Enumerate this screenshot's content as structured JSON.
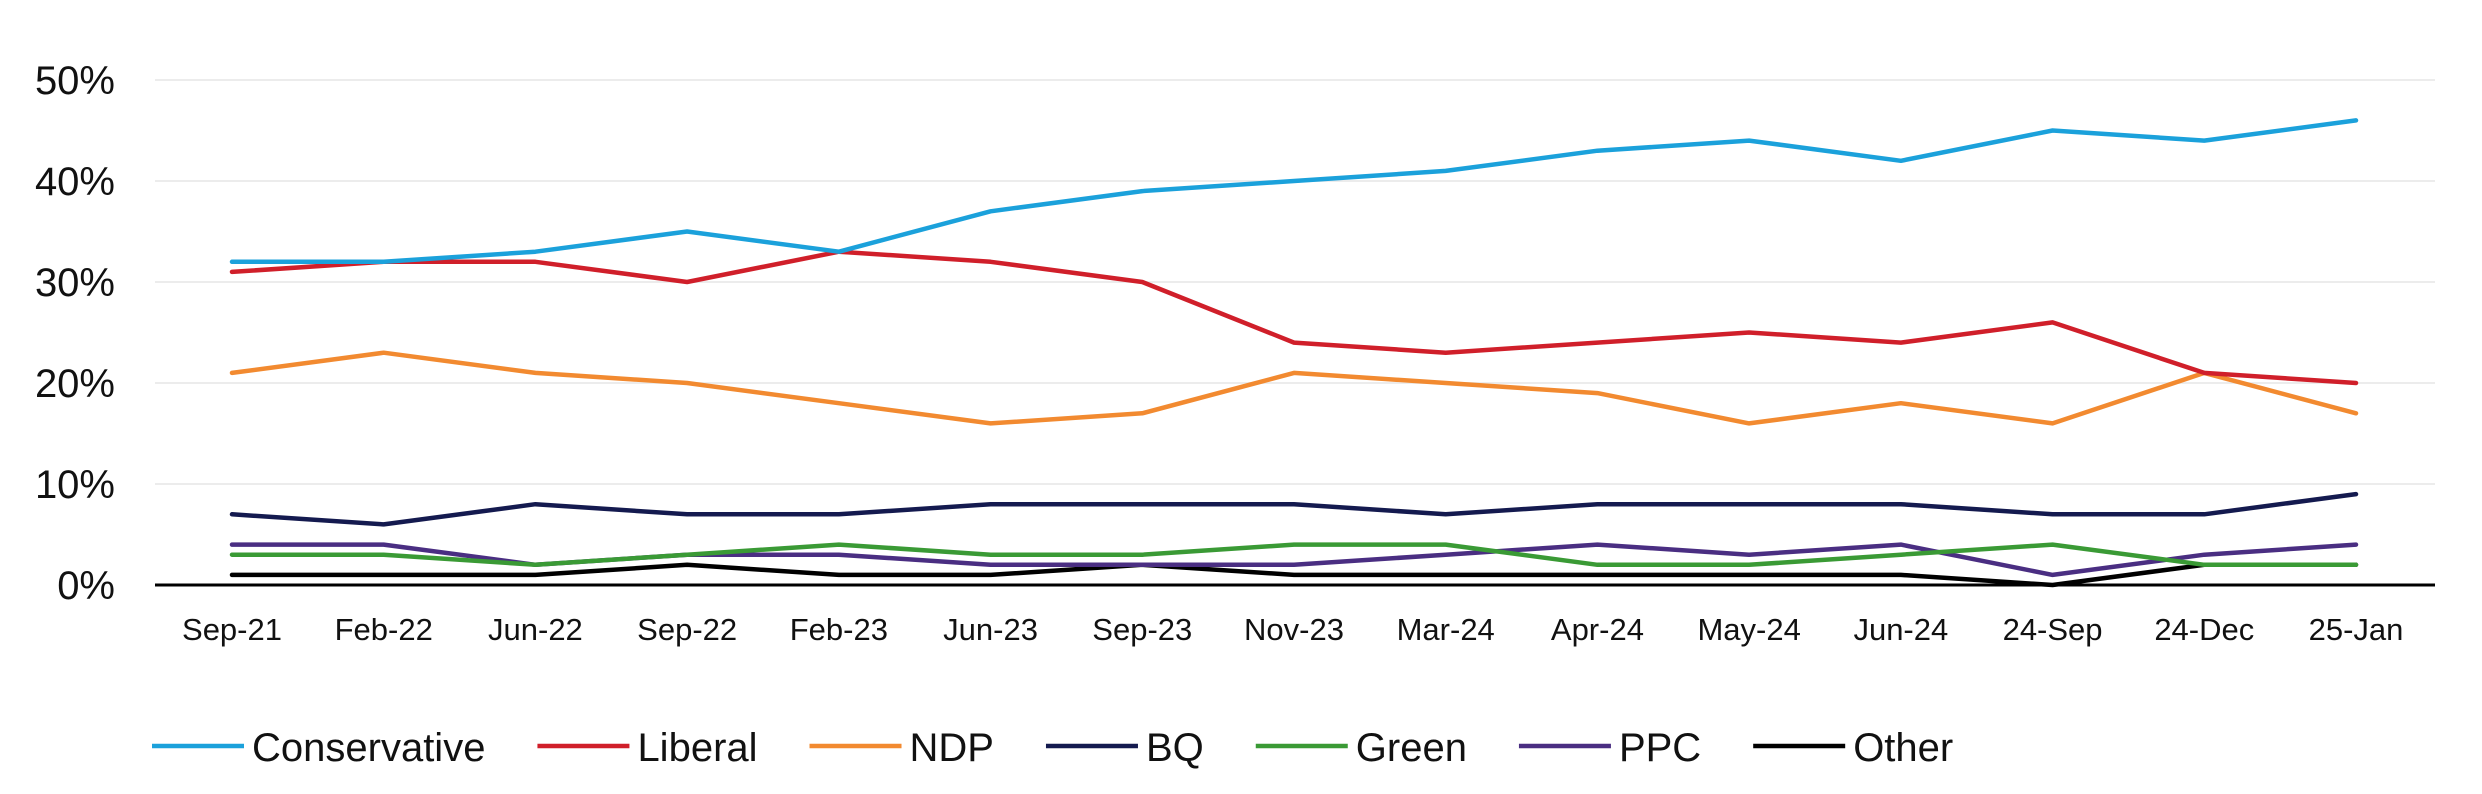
{
  "chart_data": {
    "type": "line",
    "title": "",
    "xlabel": "",
    "ylabel": "",
    "categories": [
      "Sep-21",
      "Feb-22",
      "Jun-22",
      "Sep-22",
      "Feb-23",
      "Jun-23",
      "Sep-23",
      "Nov-23",
      "Mar-24",
      "Apr-24",
      "May-24",
      "Jun-24",
      "24-Sep",
      "24-Dec",
      "25-Jan"
    ],
    "y_ticks": [
      "0%",
      "10%",
      "20%",
      "30%",
      "40%",
      "50%"
    ],
    "ylim": [
      0,
      50
    ],
    "grid": true,
    "legend_position": "bottom",
    "series": [
      {
        "name": "Conservative",
        "color": "#1BA1DB",
        "values": [
          32,
          32,
          33,
          35,
          33,
          37,
          39,
          40,
          41,
          43,
          44,
          42,
          45,
          44,
          46
        ]
      },
      {
        "name": "Liberal",
        "color": "#D01F2A",
        "values": [
          31,
          32,
          32,
          30,
          33,
          32,
          30,
          24,
          23,
          24,
          25,
          24,
          26,
          21,
          20
        ]
      },
      {
        "name": "NDP",
        "color": "#F28A30",
        "values": [
          21,
          23,
          21,
          20,
          18,
          16,
          17,
          21,
          20,
          19,
          16,
          18,
          16,
          21,
          17
        ]
      },
      {
        "name": "BQ",
        "color": "#141A4F",
        "values": [
          7,
          6,
          8,
          7,
          7,
          8,
          8,
          8,
          7,
          8,
          8,
          8,
          7,
          7,
          9
        ]
      },
      {
        "name": "Green",
        "color": "#3A9A35",
        "values": [
          3,
          3,
          2,
          3,
          4,
          3,
          3,
          4,
          4,
          2,
          2,
          3,
          4,
          2,
          2
        ]
      },
      {
        "name": "PPC",
        "color": "#4A2E82",
        "values": [
          4,
          4,
          2,
          3,
          3,
          2,
          2,
          2,
          3,
          4,
          3,
          4,
          1,
          3,
          4
        ]
      },
      {
        "name": "Other",
        "color": "#000000",
        "values": [
          1,
          1,
          1,
          2,
          1,
          1,
          2,
          1,
          1,
          1,
          1,
          1,
          0,
          2,
          2
        ]
      }
    ]
  }
}
